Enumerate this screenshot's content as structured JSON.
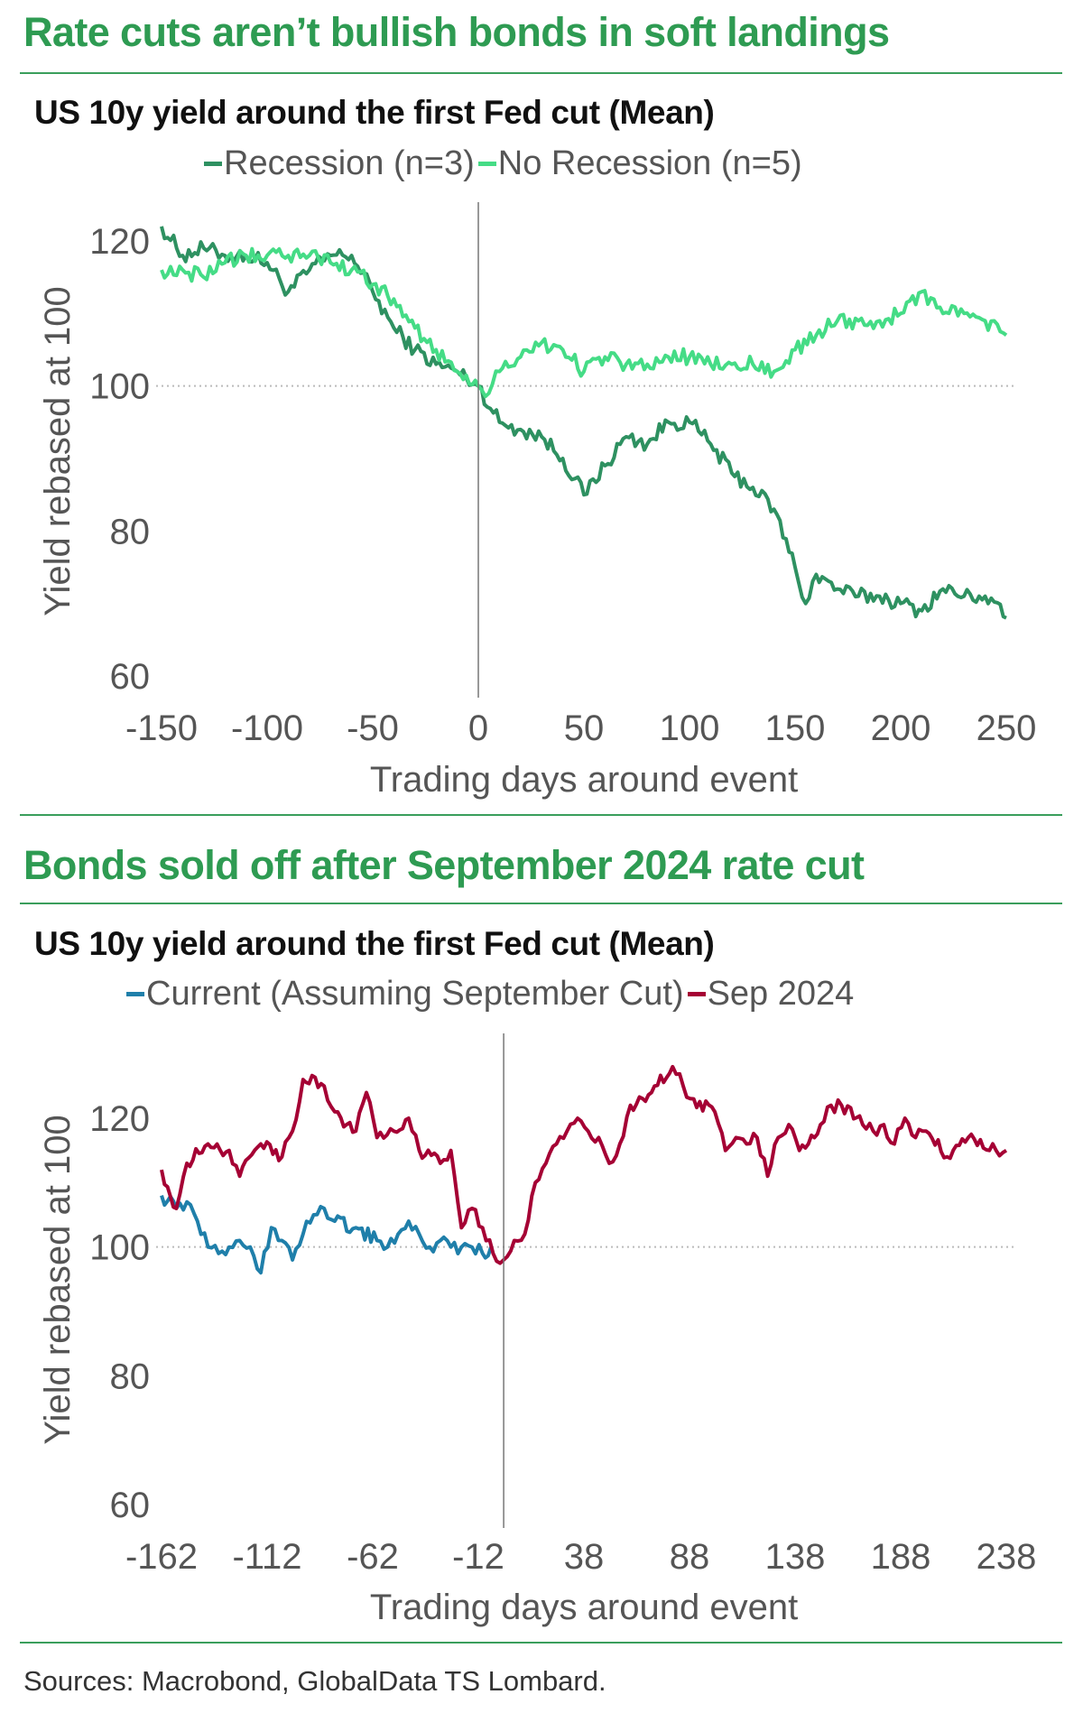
{
  "colors": {
    "title_green": "#2e9b52",
    "rule": "#3a9e5c",
    "recession": "#2e9161",
    "no_recession": "#45dc86",
    "current": "#1f7faa",
    "sep2024": "#a50034"
  },
  "section1": {
    "title": "Rate cuts aren’t bullish bonds in soft landings"
  },
  "section2": {
    "title": "Bonds sold off after September 2024 rate cut"
  },
  "sources": "Sources:  Macrobond, GlobalData TS Lombard.",
  "chart_data": [
    {
      "type": "line",
      "title": "US 10y yield around the first Fed cut (Mean)",
      "xlabel": "Trading days around event",
      "ylabel": "Yield rebased at 100",
      "xlim": [
        -150,
        250
      ],
      "ylim": [
        60,
        125
      ],
      "xticks": [
        -150,
        -100,
        -50,
        0,
        50,
        100,
        150,
        200,
        250
      ],
      "xtick_labels": [
        "-150",
        "-100",
        "-50",
        "0",
        "50",
        "100",
        "150",
        "200",
        "250"
      ],
      "yticks": [
        60,
        80,
        100,
        120
      ],
      "ytick_labels": [
        "60",
        "80",
        "100",
        "120"
      ],
      "reference_line_y": 100,
      "event_line_x": 0,
      "legend_position": "top-center",
      "series": [
        {
          "name": "Recession (n=3)",
          "color": "#2e9161",
          "x": [
            -150,
            -140,
            -130,
            -120,
            -110,
            -100,
            -90,
            -80,
            -70,
            -60,
            -50,
            -40,
            -30,
            -20,
            -10,
            0,
            10,
            20,
            30,
            40,
            50,
            60,
            70,
            80,
            90,
            100,
            110,
            120,
            130,
            140,
            150,
            155,
            160,
            170,
            180,
            190,
            200,
            210,
            220,
            230,
            240,
            250
          ],
          "y": [
            122,
            118,
            119,
            118,
            118,
            117,
            113,
            116,
            118,
            118,
            113,
            108,
            105,
            103,
            102,
            100,
            95,
            94,
            93,
            90,
            85,
            89,
            93,
            92,
            95,
            95,
            92,
            88,
            86,
            83,
            75,
            70,
            74,
            72,
            71,
            71,
            70,
            69,
            72,
            71,
            71,
            68
          ]
        },
        {
          "name": "No Recession (n=5)",
          "color": "#45dc86",
          "x": [
            -150,
            -140,
            -130,
            -120,
            -110,
            -100,
            -90,
            -80,
            -70,
            -60,
            -50,
            -40,
            -30,
            -20,
            -10,
            0,
            5,
            10,
            20,
            30,
            40,
            50,
            60,
            70,
            80,
            90,
            100,
            110,
            120,
            130,
            140,
            150,
            160,
            170,
            180,
            190,
            200,
            210,
            220,
            230,
            240,
            250
          ],
          "y": [
            116,
            116,
            115,
            117,
            118,
            118,
            118,
            118,
            117,
            116,
            114,
            112,
            108,
            105,
            102,
            100,
            99,
            102,
            104,
            106,
            105,
            102,
            104,
            103,
            103,
            104,
            104,
            103,
            103,
            103,
            102,
            105,
            107,
            109,
            109,
            109,
            110,
            113,
            110,
            110,
            109,
            107
          ]
        }
      ]
    },
    {
      "type": "line",
      "title": "US 10y yield around the first Fed cut (Mean)",
      "xlabel": "Trading days around event",
      "ylabel": "Yield rebased at 100",
      "xlim": [
        -162,
        238
      ],
      "ylim": [
        60,
        130
      ],
      "xticks": [
        -162,
        -112,
        -62,
        -12,
        38,
        88,
        138,
        188,
        238
      ],
      "xtick_labels": [
        "-162",
        "-112",
        "-62",
        "-12",
        "38",
        "88",
        "138",
        "188",
        "238"
      ],
      "yticks": [
        60,
        80,
        100,
        120
      ],
      "ytick_labels": [
        "60",
        "80",
        "100",
        "120"
      ],
      "reference_line_y": 100,
      "event_line_x": 0,
      "legend_position": "top-center",
      "series": [
        {
          "name": "Current (Assuming September Cut)",
          "color": "#1f7faa",
          "x": [
            -162,
            -155,
            -150,
            -145,
            -140,
            -135,
            -130,
            -125,
            -120,
            -115,
            -110,
            -105,
            -100,
            -95,
            -90,
            -85,
            -80,
            -70,
            -60,
            -55,
            -50,
            -45,
            -40,
            -35,
            -30,
            -25,
            -20,
            -15,
            -10,
            -6
          ],
          "y": [
            108,
            106,
            107,
            104,
            100,
            99,
            100,
            101,
            100,
            96,
            103,
            101,
            98,
            102,
            105,
            106,
            104,
            103,
            101,
            100,
            102,
            104,
            102,
            100,
            101,
            100,
            100,
            100,
            99,
            100
          ]
        },
        {
          "name": "Sep 2024",
          "color": "#a50034",
          "x": [
            -162,
            -155,
            -150,
            -140,
            -130,
            -125,
            -115,
            -105,
            -100,
            -95,
            -85,
            -80,
            -70,
            -65,
            -60,
            -52,
            -45,
            -40,
            -30,
            -25,
            -20,
            -15,
            -10,
            -5,
            0,
            5,
            10,
            15,
            20,
            25,
            30,
            35,
            40,
            45,
            50,
            55,
            60,
            70,
            80,
            85,
            90,
            100,
            105,
            110,
            115,
            120,
            125,
            130,
            135,
            140,
            150,
            155,
            160,
            170,
            175,
            180,
            185,
            190,
            195,
            200,
            210,
            220,
            230,
            238
          ],
          "y": [
            112,
            106,
            113,
            116,
            115,
            111,
            116,
            114,
            118,
            126,
            125,
            121,
            118,
            124,
            117,
            118,
            120,
            115,
            113,
            115,
            103,
            106,
            103,
            99,
            98,
            101,
            102,
            110,
            113,
            116,
            118,
            120,
            118,
            117,
            113,
            116,
            122,
            124,
            128,
            125,
            123,
            121,
            115,
            117,
            116,
            117,
            111,
            117,
            119,
            115,
            119,
            122,
            122,
            119,
            118,
            119,
            116,
            120,
            117,
            118,
            114,
            117,
            115,
            115
          ]
        }
      ]
    }
  ]
}
